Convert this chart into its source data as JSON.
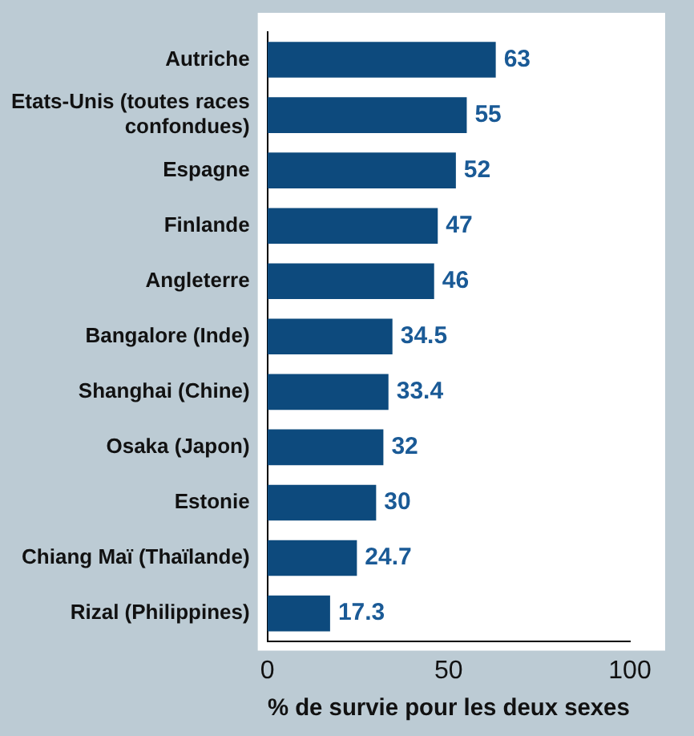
{
  "chart_data": {
    "type": "bar",
    "orientation": "horizontal",
    "xlabel": "% de survie pour les deux sexes",
    "categories": [
      "Autriche",
      "Etats-Unis (toutes races\nconfondues)",
      "Espagne",
      "Finlande",
      "Angleterre",
      "Bangalore (Inde)",
      "Shanghai (Chine)",
      "Osaka (Japon)",
      "Estonie",
      "Chiang Maï (Thaïlande)",
      "Rizal (Philippines)"
    ],
    "values": [
      63,
      55,
      52,
      47,
      46,
      34.5,
      33.4,
      32,
      30,
      24.7,
      17.3
    ],
    "color": "#0d4a7d",
    "xlim": [
      0,
      100
    ],
    "xticks": [
      0,
      50,
      100
    ],
    "grid": false,
    "legend": false,
    "data_labels": true
  }
}
